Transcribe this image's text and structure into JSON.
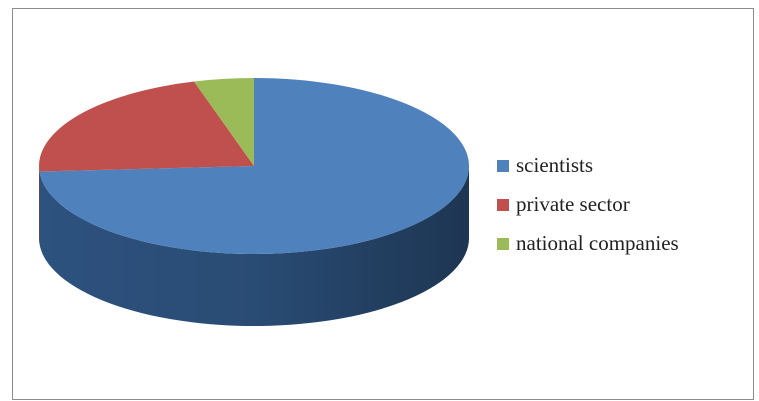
{
  "chart_data": {
    "type": "pie",
    "style": "3d",
    "title": "",
    "start_angle_deg": 0,
    "direction": "clockwise",
    "categories": [
      "scientists",
      "private sector",
      "national companies"
    ],
    "values": [
      74,
      21.5,
      4.5
    ],
    "unit": "%",
    "colors": [
      "#4f81bd",
      "#c0504d",
      "#9bbb59"
    ],
    "side_colors": [
      "#2f5684",
      "#8a3432",
      "#6b8a3a"
    ],
    "legend": "right"
  }
}
